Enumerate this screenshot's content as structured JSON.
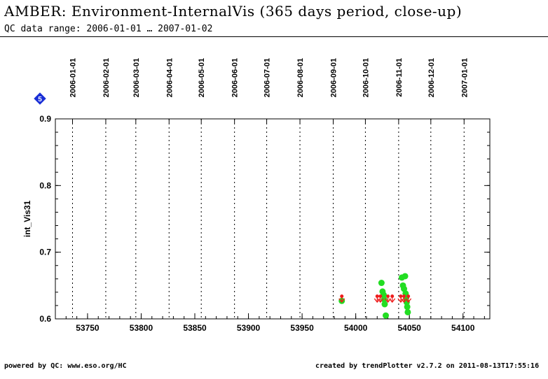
{
  "header": {
    "title": "AMBER: Environment-InternalVis (365 days period, close-up)",
    "subtitle": "QC data range: 2006-01-01 … 2007-01-02"
  },
  "footer": {
    "left": "powered by QC: www.eso.org/HC",
    "right": "created by trendPlotter v2.7.2 on 2011-08-13T17:55:16"
  },
  "badge": {
    "label": "5",
    "color": "#1a2fd6"
  },
  "chart_data": {
    "type": "scatter",
    "title": "AMBER: Environment-InternalVis (365 days period, close-up)",
    "ylabel": "int_Vis31",
    "xlabel": "",
    "xlim": [
      53720,
      54125
    ],
    "ylim": [
      0.6,
      0.9
    ],
    "x_ticks": [
      53750,
      53800,
      53850,
      53900,
      53950,
      54000,
      54050,
      54100
    ],
    "y_ticks": [
      0.6,
      0.7,
      0.8,
      0.9
    ],
    "y_tick_labels": [
      "0.6",
      "0.7",
      "0.8",
      "0.9"
    ],
    "date_markers": [
      {
        "label": "2006-01-01",
        "mjd": 53736
      },
      {
        "label": "2006-02-01",
        "mjd": 53767
      },
      {
        "label": "2006-03-01",
        "mjd": 53795
      },
      {
        "label": "2006-04-01",
        "mjd": 53826
      },
      {
        "label": "2006-05-01",
        "mjd": 53856
      },
      {
        "label": "2006-06-01",
        "mjd": 53887
      },
      {
        "label": "2006-07-01",
        "mjd": 53917
      },
      {
        "label": "2006-08-01",
        "mjd": 53948
      },
      {
        "label": "2006-09-01",
        "mjd": 53979
      },
      {
        "label": "2006-10-01",
        "mjd": 54009
      },
      {
        "label": "2006-11-01",
        "mjd": 54040
      },
      {
        "label": "2006-12-01",
        "mjd": 54070
      },
      {
        "label": "2007-01-01",
        "mjd": 54101
      }
    ],
    "grid": "vertical-dotted-at-month-starts",
    "colors": {
      "ok": "#22dd22",
      "outlier": "#ee1c1c"
    },
    "series": [
      {
        "status": "ok",
        "points": [
          {
            "x": 53987,
            "y": 0.627
          },
          {
            "x": 54024,
            "y": 0.654
          },
          {
            "x": 54025,
            "y": 0.641
          },
          {
            "x": 54026,
            "y": 0.636
          },
          {
            "x": 54026.5,
            "y": 0.629
          },
          {
            "x": 54027,
            "y": 0.622
          },
          {
            "x": 54028,
            "y": 0.605
          },
          {
            "x": 54043,
            "y": 0.662
          },
          {
            "x": 54044,
            "y": 0.65
          },
          {
            "x": 54045,
            "y": 0.645
          },
          {
            "x": 54046,
            "y": 0.664
          },
          {
            "x": 54046.5,
            "y": 0.638
          },
          {
            "x": 54047,
            "y": 0.632
          },
          {
            "x": 54047.5,
            "y": 0.625
          },
          {
            "x": 54048,
            "y": 0.618
          },
          {
            "x": 54048.5,
            "y": 0.61
          }
        ]
      },
      {
        "status": "outlier",
        "points": [
          {
            "x": 53987,
            "y": 0.634
          },
          {
            "x": 54020,
            "y": 0.634
          },
          {
            "x": 54023,
            "y": 0.634
          },
          {
            "x": 54030,
            "y": 0.634
          },
          {
            "x": 54034,
            "y": 0.634
          },
          {
            "x": 54042,
            "y": 0.634
          },
          {
            "x": 54045,
            "y": 0.634
          },
          {
            "x": 54049,
            "y": 0.634
          }
        ]
      }
    ]
  }
}
